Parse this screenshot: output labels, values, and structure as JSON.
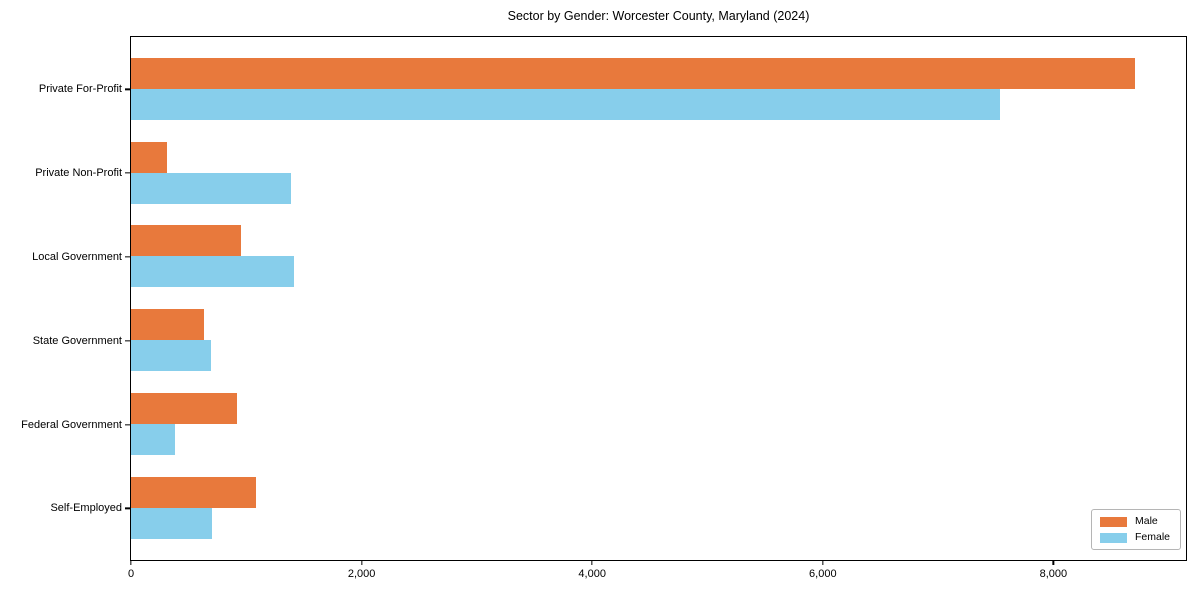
{
  "chart_data": {
    "type": "bar",
    "orientation": "horizontal",
    "title": "Sector by Gender: Worcester County, Maryland (2024)",
    "categories": [
      "Private For-Profit",
      "Private Non-Profit",
      "Local Government",
      "State Government",
      "Federal Government",
      "Self-Employed"
    ],
    "series": [
      {
        "name": "Male",
        "color": "#E8793C",
        "values": [
          8710,
          310,
          950,
          630,
          920,
          1080
        ]
      },
      {
        "name": "Female",
        "color": "#87CEEB",
        "values": [
          7540,
          1390,
          1410,
          690,
          380,
          700
        ]
      }
    ],
    "xlabel": "",
    "ylabel": "",
    "xlim": [
      0,
      9150
    ],
    "grid": false,
    "x_ticks": [
      {
        "value": 0,
        "label": "0"
      },
      {
        "value": 2000,
        "label": "2,000"
      },
      {
        "value": 4000,
        "label": "4,000"
      },
      {
        "value": 6000,
        "label": "6,000"
      },
      {
        "value": 8000,
        "label": "8,000"
      }
    ],
    "legend": {
      "position": "lower-right",
      "items": [
        {
          "label": "Male",
          "color": "#E8793C"
        },
        {
          "label": "Female",
          "color": "#87CEEB"
        }
      ]
    }
  }
}
